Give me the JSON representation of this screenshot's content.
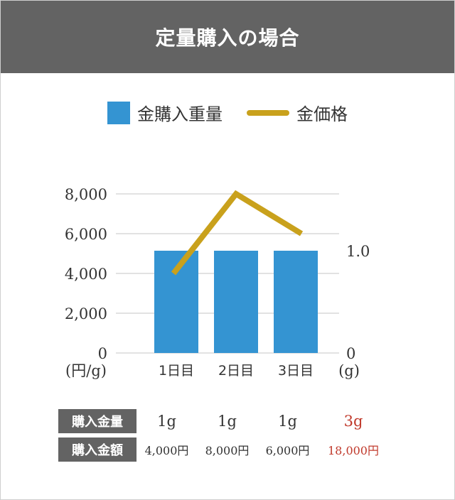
{
  "title": "定量購入の場合",
  "colors": {
    "bar": "#3494d2",
    "line": "#c9a11c",
    "header": "#636363",
    "total": "#c0392b"
  },
  "chart_data": {
    "type": "bar",
    "categories": [
      "1日目",
      "2日目",
      "3日目"
    ],
    "series": [
      {
        "name": "金購入重量",
        "type": "bar",
        "axis": "right",
        "values": [
          1,
          1,
          1
        ]
      },
      {
        "name": "金価格",
        "type": "line",
        "axis": "left",
        "values": [
          4000,
          8000,
          6000
        ]
      }
    ],
    "left_axis": {
      "ticks": [
        "8,000",
        "6,000",
        "4,000",
        "2,000",
        "0"
      ],
      "unit": "(円/g)",
      "ylim": [
        0,
        8000
      ]
    },
    "right_axis": {
      "ticks": [
        "1.0",
        "0"
      ],
      "unit": "(g)",
      "ylim": [
        0,
        1.0
      ]
    },
    "grid": true,
    "legend": "top-center"
  },
  "table": {
    "rows": [
      {
        "label": "購入金量",
        "cells": [
          "1g",
          "1g",
          "1g"
        ],
        "total": "3g"
      },
      {
        "label": "購入金額",
        "cells": [
          "4,000円",
          "8,000円",
          "6,000円"
        ],
        "total": "18,000円"
      }
    ]
  }
}
